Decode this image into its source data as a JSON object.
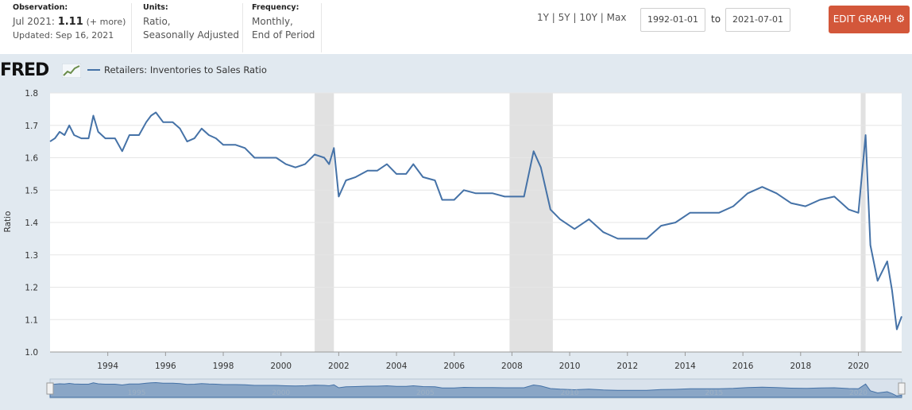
{
  "header": {
    "observation": {
      "label": "Observation:",
      "period": "Jul 2021:",
      "value": "1.11",
      "more": "(+ more)",
      "updated": "Updated: Sep 16, 2021"
    },
    "units": {
      "label": "Units:",
      "line1": "Ratio,",
      "line2": "Seasonally Adjusted"
    },
    "frequency": {
      "label": "Frequency:",
      "line1": "Monthly,",
      "line2": "End of Period"
    },
    "ranges": [
      "1Y",
      "5Y",
      "10Y",
      "Max"
    ],
    "range_separator": "|",
    "start_date": "1992-01-01",
    "end_date": "2021-07-01",
    "to_label": "to",
    "edit_label": "EDIT GRAPH",
    "edit_icon": "gear-icon"
  },
  "brand": {
    "name": "FRED",
    "icon": "trend-line-icon"
  },
  "colors": {
    "line": "#4572a7",
    "recession": "#e1e1e1",
    "plot_bg": "#ffffff",
    "page_bg": "#e1e9f0",
    "button": "#d3573a"
  },
  "chart_data": {
    "type": "line",
    "title": "",
    "legend": "Retailers: Inventories to Sales Ratio",
    "legend_position": "top-left",
    "ylabel": "Ratio",
    "xlabel": "",
    "ylim": [
      1.0,
      1.8
    ],
    "yticks": [
      "1.0",
      "1.1",
      "1.2",
      "1.3",
      "1.4",
      "1.5",
      "1.6",
      "1.7",
      "1.8"
    ],
    "xticks": [
      "1994",
      "1996",
      "1998",
      "2000",
      "2002",
      "2004",
      "2006",
      "2008",
      "2010",
      "2012",
      "2014",
      "2016",
      "2018",
      "2020"
    ],
    "xlim": [
      "1992-01",
      "2021-07"
    ],
    "grid": true,
    "recessions": [
      [
        "2001-03",
        "2001-11"
      ],
      [
        "2007-12",
        "2009-06"
      ],
      [
        "2020-02",
        "2020-04"
      ]
    ],
    "navigator_labels": [
      "1995",
      "2000",
      "2005",
      "2010",
      "2015",
      "2020"
    ],
    "series": [
      {
        "name": "Retailers: Inventories to Sales Ratio",
        "points": [
          [
            "1992-01",
            1.65
          ],
          [
            "1992-03",
            1.66
          ],
          [
            "1992-05",
            1.68
          ],
          [
            "1992-07",
            1.67
          ],
          [
            "1992-09",
            1.7
          ],
          [
            "1992-11",
            1.67
          ],
          [
            "1993-02",
            1.66
          ],
          [
            "1993-05",
            1.66
          ],
          [
            "1993-07",
            1.73
          ],
          [
            "1993-09",
            1.68
          ],
          [
            "1993-12",
            1.66
          ],
          [
            "1994-04",
            1.66
          ],
          [
            "1994-07",
            1.62
          ],
          [
            "1994-10",
            1.67
          ],
          [
            "1995-02",
            1.67
          ],
          [
            "1995-05",
            1.71
          ],
          [
            "1995-07",
            1.73
          ],
          [
            "1995-09",
            1.74
          ],
          [
            "1995-12",
            1.71
          ],
          [
            "1996-04",
            1.71
          ],
          [
            "1996-07",
            1.69
          ],
          [
            "1996-10",
            1.65
          ],
          [
            "1997-01",
            1.66
          ],
          [
            "1997-04",
            1.69
          ],
          [
            "1997-07",
            1.67
          ],
          [
            "1997-10",
            1.66
          ],
          [
            "1998-01",
            1.64
          ],
          [
            "1998-06",
            1.64
          ],
          [
            "1998-10",
            1.63
          ],
          [
            "1999-02",
            1.6
          ],
          [
            "1999-06",
            1.6
          ],
          [
            "1999-11",
            1.6
          ],
          [
            "2000-03",
            1.58
          ],
          [
            "2000-07",
            1.57
          ],
          [
            "2000-11",
            1.58
          ],
          [
            "2001-03",
            1.61
          ],
          [
            "2001-07",
            1.6
          ],
          [
            "2001-09",
            1.58
          ],
          [
            "2001-11",
            1.63
          ],
          [
            "2002-01",
            1.48
          ],
          [
            "2002-04",
            1.53
          ],
          [
            "2002-08",
            1.54
          ],
          [
            "2003-01",
            1.56
          ],
          [
            "2003-05",
            1.56
          ],
          [
            "2003-09",
            1.58
          ],
          [
            "2004-01",
            1.55
          ],
          [
            "2004-05",
            1.55
          ],
          [
            "2004-08",
            1.58
          ],
          [
            "2004-12",
            1.54
          ],
          [
            "2005-05",
            1.53
          ],
          [
            "2005-08",
            1.47
          ],
          [
            "2006-01",
            1.47
          ],
          [
            "2006-05",
            1.5
          ],
          [
            "2006-10",
            1.49
          ],
          [
            "2007-05",
            1.49
          ],
          [
            "2007-10",
            1.48
          ],
          [
            "2008-01",
            1.48
          ],
          [
            "2008-06",
            1.48
          ],
          [
            "2008-10",
            1.62
          ],
          [
            "2009-01",
            1.57
          ],
          [
            "2009-05",
            1.44
          ],
          [
            "2009-09",
            1.41
          ],
          [
            "2010-03",
            1.38
          ],
          [
            "2010-09",
            1.41
          ],
          [
            "2011-03",
            1.37
          ],
          [
            "2011-09",
            1.35
          ],
          [
            "2012-03",
            1.35
          ],
          [
            "2012-09",
            1.35
          ],
          [
            "2013-03",
            1.39
          ],
          [
            "2013-09",
            1.4
          ],
          [
            "2014-03",
            1.43
          ],
          [
            "2014-09",
            1.43
          ],
          [
            "2015-03",
            1.43
          ],
          [
            "2015-09",
            1.45
          ],
          [
            "2016-03",
            1.49
          ],
          [
            "2016-09",
            1.51
          ],
          [
            "2017-03",
            1.49
          ],
          [
            "2017-09",
            1.46
          ],
          [
            "2018-03",
            1.45
          ],
          [
            "2018-09",
            1.47
          ],
          [
            "2019-03",
            1.48
          ],
          [
            "2019-09",
            1.44
          ],
          [
            "2020-01",
            1.43
          ],
          [
            "2020-04",
            1.67
          ],
          [
            "2020-06",
            1.33
          ],
          [
            "2020-09",
            1.22
          ],
          [
            "2021-01",
            1.28
          ],
          [
            "2021-03",
            1.19
          ],
          [
            "2021-05",
            1.07
          ],
          [
            "2021-07",
            1.11
          ]
        ]
      }
    ]
  }
}
